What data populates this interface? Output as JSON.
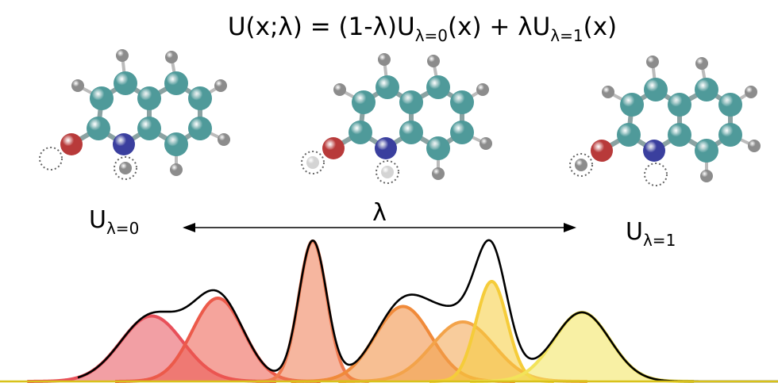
{
  "equation": {
    "lhs": "U(x;λ) = (1-λ)U",
    "sub0": "λ=0",
    "mid": "(x) + λU",
    "sub1": "λ=1",
    "rhs": "(x)"
  },
  "left_label": {
    "main": "U",
    "sub": "λ=0"
  },
  "right_label": {
    "main": "U",
    "sub": "λ=1"
  },
  "lambda_label": "λ",
  "colors": {
    "carbon": "#4f9a9a",
    "nitrogen": "#3a3f9e",
    "oxygen": "#b83a3a",
    "hydrogen": "#8c8c8c",
    "hydrogen_ghost": "#d4d4d4",
    "bond": "#8aa2a2",
    "envelope": "#000000",
    "baseline": "#d8c21a",
    "gaussians": [
      "#e8505a",
      "#ec5a4a",
      "#ef7a50",
      "#f08a3a",
      "#f3a34a",
      "#f5cc3a",
      "#f2e35a"
    ]
  },
  "gaussians": [
    {
      "mu": 1.95,
      "sigma": 0.4,
      "amp": 0.55
    },
    {
      "mu": 2.8,
      "sigma": 0.33,
      "amp": 0.7
    },
    {
      "mu": 4.02,
      "sigma": 0.18,
      "amp": 1.18
    },
    {
      "mu": 5.18,
      "sigma": 0.36,
      "amp": 0.63
    },
    {
      "mu": 5.95,
      "sigma": 0.4,
      "amp": 0.5
    },
    {
      "mu": 6.32,
      "sigma": 0.2,
      "amp": 0.84
    },
    {
      "mu": 7.48,
      "sigma": 0.36,
      "amp": 0.58
    }
  ],
  "molecules": [
    {
      "ghosts": [
        "O",
        "N"
      ],
      "ghost_h": []
    },
    {
      "ghosts": [
        "O",
        "N"
      ],
      "ghost_h": [
        "O",
        "N"
      ]
    },
    {
      "ghosts": [
        "O",
        "N"
      ],
      "ghost_h": []
    }
  ]
}
